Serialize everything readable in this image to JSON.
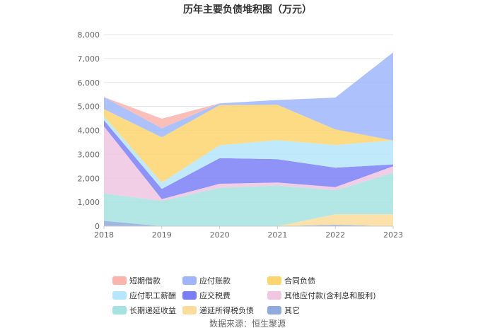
{
  "chart_data": {
    "type": "area",
    "stacked": true,
    "title": "历年主要负债堆积图（万元）",
    "source": "数据来源：恒生聚源",
    "x": [
      "2018",
      "2019",
      "2020",
      "2021",
      "2022",
      "2023"
    ],
    "ylim": [
      0,
      8000
    ],
    "yticks": [
      "0",
      "1,000",
      "2,000",
      "3,000",
      "4,000",
      "5,000",
      "6,000",
      "7,000",
      "8,000"
    ],
    "grid": true,
    "legend_position": "bottom",
    "series": [
      {
        "name": "其它",
        "color": "#8faadc",
        "values": [
          220,
          0,
          0,
          0,
          60,
          0
        ]
      },
      {
        "name": "递延所得税负债",
        "color": "#fddc9c",
        "values": [
          0,
          0,
          0,
          0,
          440,
          500
        ]
      },
      {
        "name": "长期递延收益",
        "color": "#a6e3e0",
        "values": [
          1150,
          1050,
          1600,
          1700,
          1000,
          1730
        ]
      },
      {
        "name": "其他应付款(含利息和股利)",
        "color": "#f0c6e2",
        "values": [
          2800,
          80,
          170,
          120,
          130,
          270
        ]
      },
      {
        "name": "应交税费",
        "color": "#7b7ff5",
        "values": [
          250,
          430,
          1070,
          980,
          810,
          80
        ]
      },
      {
        "name": "应付职工薪酬",
        "color": "#b5e6fb",
        "values": [
          170,
          260,
          540,
          790,
          950,
          1000
        ]
      },
      {
        "name": "合同负债",
        "color": "#fdd56e",
        "values": [
          300,
          1890,
          1680,
          1480,
          650,
          0
        ]
      },
      {
        "name": "应付账款",
        "color": "#9fb6fb",
        "values": [
          500,
          380,
          70,
          200,
          1330,
          3680
        ]
      },
      {
        "name": "短期借款",
        "color": "#fbb3ad",
        "values": [
          0,
          400,
          0,
          0,
          0,
          0
        ]
      }
    ],
    "legend_order": [
      "短期借款",
      "应付账款",
      "合同负债",
      "应付职工薪酬",
      "应交税费",
      "其他应付款(含利息和股利)",
      "长期递延收益",
      "递延所得税负债",
      "其它"
    ]
  }
}
